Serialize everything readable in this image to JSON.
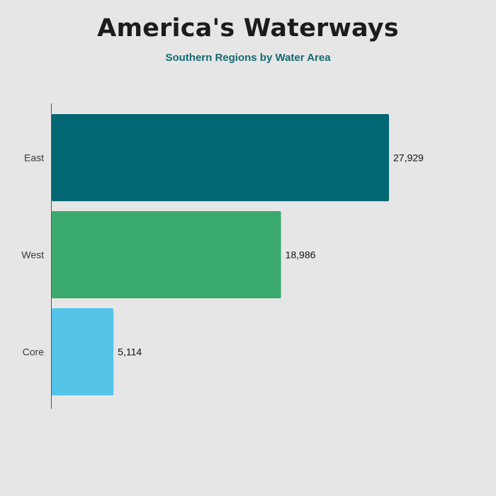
{
  "title": "America's Waterways",
  "subtitle": "Southern Regions by Water Area",
  "chart_data": {
    "type": "bar",
    "orientation": "horizontal",
    "title": "America's Waterways",
    "subtitle": "Southern Regions by Water Area",
    "categories": [
      "East",
      "West",
      "Core"
    ],
    "values": [
      27929,
      18986,
      5114
    ],
    "value_labels": [
      "27,929",
      "18,986",
      "5,114"
    ],
    "colors": [
      "#036773",
      "#3aaa6d",
      "#55c4e9"
    ],
    "xlim": [
      0,
      31000
    ],
    "grid": false,
    "legend": "none",
    "xlabel": "",
    "ylabel": ""
  }
}
